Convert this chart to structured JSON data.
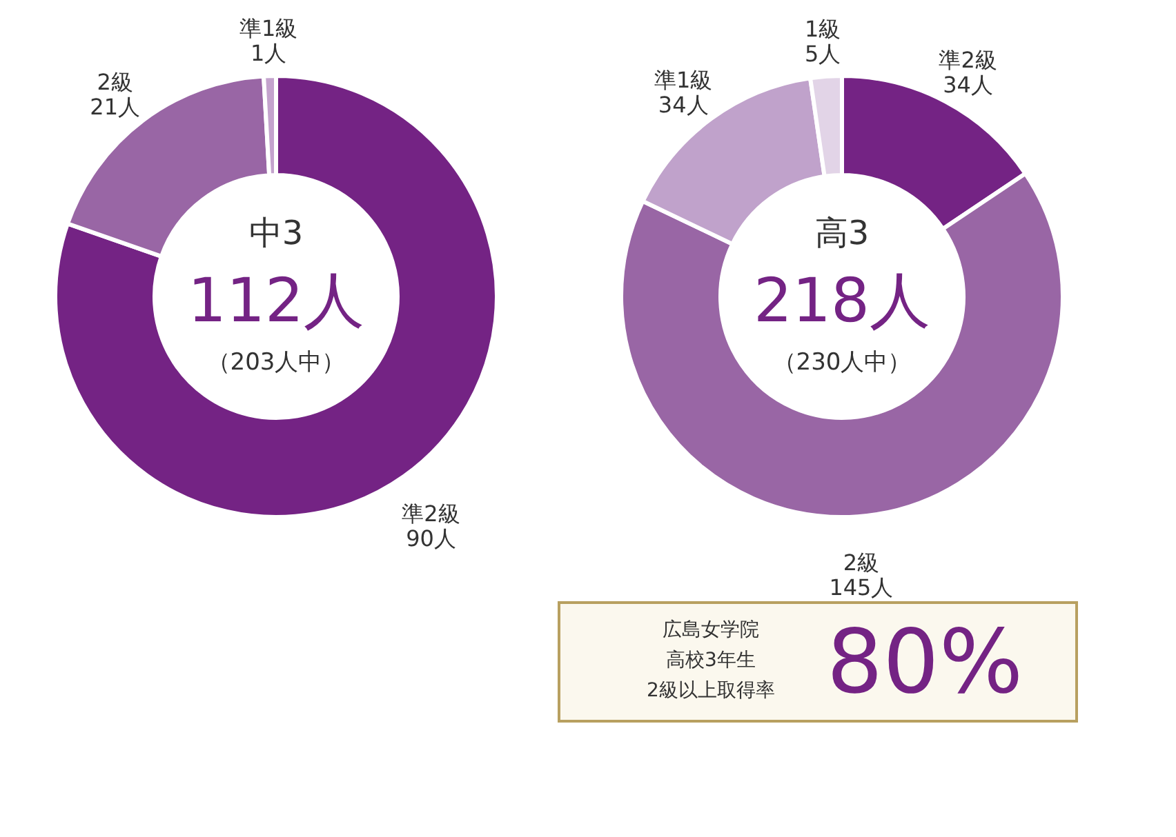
{
  "chart_data": [
    {
      "type": "donut",
      "title": "中3",
      "annotations": [
        "112人",
        "（203人中）"
      ],
      "categories": [
        "準2級",
        "2級",
        "準1級"
      ],
      "values": [
        90,
        21,
        1
      ],
      "value_labels": [
        "90人",
        "21人",
        "1人"
      ],
      "colors": [
        "#742384",
        "#9966a5",
        "#c4a3cd"
      ]
    },
    {
      "type": "donut",
      "title": "高3",
      "annotations": [
        "218人",
        "（230人中）"
      ],
      "categories": [
        "準2級",
        "2級",
        "準1級",
        "1級"
      ],
      "values": [
        34,
        145,
        34,
        5
      ],
      "value_labels": [
        "34人",
        "145人",
        "34人",
        "5人"
      ],
      "colors": [
        "#742384",
        "#9966a5",
        "#c0a2cb",
        "#e2d4e7"
      ]
    },
    {
      "type": "other",
      "annotations": [
        "広島女学院",
        "高校3年生",
        "2級以上取得率",
        "80%"
      ]
    }
  ]
}
